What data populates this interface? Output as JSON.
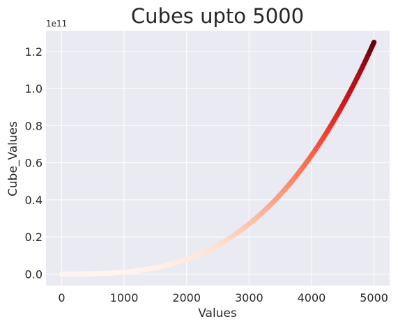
{
  "chart_data": {
    "type": "scatter",
    "title": "Cubes upto 5000",
    "xlabel": "Values",
    "ylabel": "Cube_Values",
    "y_offset_label": "1e11",
    "xlim": [
      -250,
      5250
    ],
    "ylim": [
      -0.0625,
      1.3125
    ],
    "xticks": [
      0,
      1000,
      2000,
      3000,
      4000,
      5000
    ],
    "xtick_labels": [
      "0",
      "1000",
      "2000",
      "3000",
      "4000",
      "5000"
    ],
    "yticks": [
      0.0,
      0.2,
      0.4,
      0.6,
      0.8,
      1.0,
      1.2
    ],
    "ytick_labels": [
      "0.0",
      "0.2",
      "0.4",
      "0.6",
      "0.8",
      "1.0",
      "1.2"
    ],
    "grid": true,
    "colormap": "Reds",
    "colors": {
      "background": "#EAEAF2",
      "grid": "#FFFFFF",
      "text": "#262626"
    },
    "series": [
      {
        "formula": "y = x^3",
        "x": [
          0,
          250,
          500,
          750,
          1000,
          1250,
          1500,
          1750,
          2000,
          2250,
          2500,
          2750,
          3000,
          3250,
          3500,
          3750,
          4000,
          4250,
          4500,
          4750,
          5000
        ],
        "y": [
          0.0,
          0.00015625,
          0.00125,
          0.00421875,
          0.01,
          0.01953125,
          0.03375,
          0.05359375,
          0.08,
          0.11390625,
          0.15625,
          0.20796875,
          0.27,
          0.34328125,
          0.42875,
          0.52734375,
          0.64,
          0.76765625,
          0.91125,
          1.07171875,
          1.25
        ]
      }
    ]
  }
}
